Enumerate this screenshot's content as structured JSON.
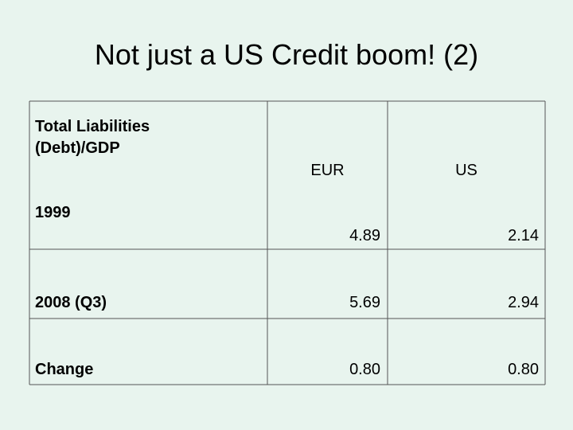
{
  "title": "Not just a US Credit boom! (2)",
  "table": {
    "header": [
      "Total Liabilities (Debt)/GDP",
      "EUR",
      "US"
    ],
    "rows": [
      [
        "1999",
        "4.89",
        "2.14"
      ],
      [
        "2008 (Q3)",
        "5.69",
        "2.94"
      ],
      [
        "Change",
        "0.80",
        "0.80"
      ]
    ]
  }
}
